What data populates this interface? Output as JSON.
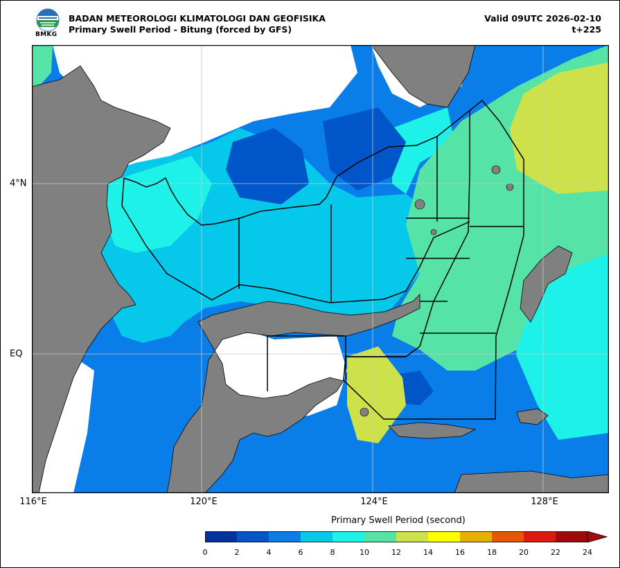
{
  "header": {
    "agency": "BADAN METEOROLOGI KLIMATOLOGI DAN GEOFISIKA",
    "product": "Primary Swell Period - Bitung (forced by GFS)",
    "valid": "Valid 09UTC 2026-02-10",
    "lead": "t+225",
    "logo_text": "BMKG"
  },
  "map": {
    "longitude_labels": [
      "116°E",
      "120°E",
      "124°E",
      "128°E"
    ],
    "latitude_labels": [
      "4°N",
      "EQ"
    ],
    "colors": {
      "land": "#808080",
      "no_data": "#ffffff",
      "grid": "#c8c8c8"
    }
  },
  "colorbar": {
    "title": "Primary Swell Period (second)",
    "ticks": [
      "0",
      "2",
      "4",
      "6",
      "8",
      "10",
      "12",
      "14",
      "16",
      "18",
      "20",
      "22",
      "24"
    ],
    "colors": [
      "#0033a0",
      "#0055c8",
      "#0a7ee8",
      "#05c8ea",
      "#1ef2e8",
      "#55e3a8",
      "#cde24a",
      "#ffff00",
      "#e6b000",
      "#e65800",
      "#dd1a10",
      "#a00a0a"
    ],
    "extend": "max"
  }
}
